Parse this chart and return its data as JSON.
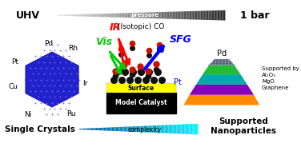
{
  "bg_color": "#ffffff",
  "title_uhv": "UHV",
  "title_1bar": "1 bar",
  "pressure_label": "pressure",
  "ir_label": "IR",
  "vis_label": "Vis",
  "isotopic_co_label": "(Isotopic) CO",
  "sfg_label": "SFG",
  "surface_label": "Surface",
  "model_catalyst_label": "Model Catalyst",
  "single_crystals_label": "Single Crystals",
  "supported_label": "Supported\nNanoparticles",
  "complexity_label": "complexity",
  "right_support": "Supported by\nAl₂O₃\nMgO\nGraphene",
  "crystal_color": "#2222cc",
  "crystal_dot_color": "#6666ee",
  "ir_color": "#ff0000",
  "vis_color": "#00cc00",
  "sfg_color": "#0000ff",
  "surface_color": "#ffff00",
  "mc_color": "#000000",
  "atom_black": "#111111",
  "atom_red": "#cc1100"
}
